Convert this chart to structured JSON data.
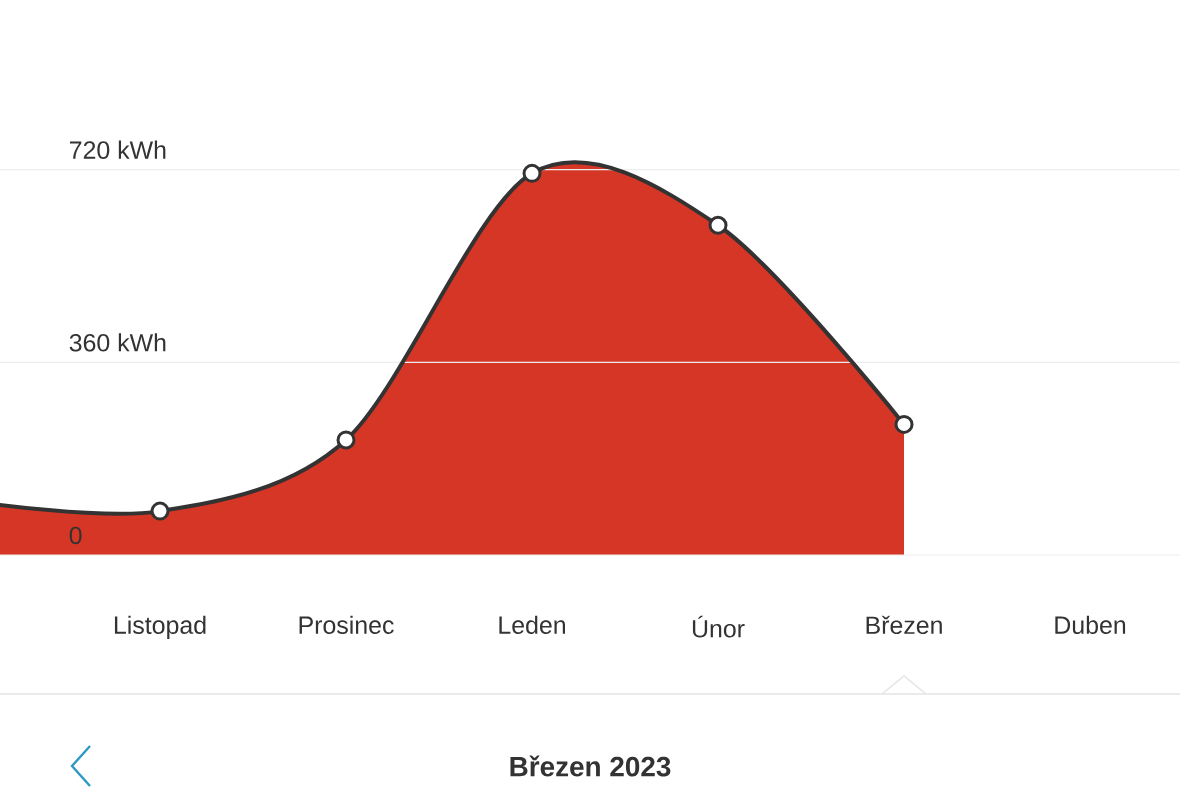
{
  "chart_data": {
    "type": "area",
    "title": "Březen 2023",
    "categories": [
      null,
      "Listopad",
      "Prosinec",
      "Leden",
      "Únor",
      "Březen",
      "Duben"
    ],
    "series": [
      {
        "color": "#d63625",
        "values": [
          100,
          82,
          215,
          713,
          616,
          244,
          null
        ]
      }
    ],
    "ylim": [
      0,
      720
    ],
    "yticks": [
      {
        "value": 0,
        "label": "0"
      },
      {
        "value": 360,
        "label": "360 kWh"
      },
      {
        "value": 720,
        "label": "720 kWh"
      }
    ],
    "grid": "y",
    "marker": "circle"
  }
}
